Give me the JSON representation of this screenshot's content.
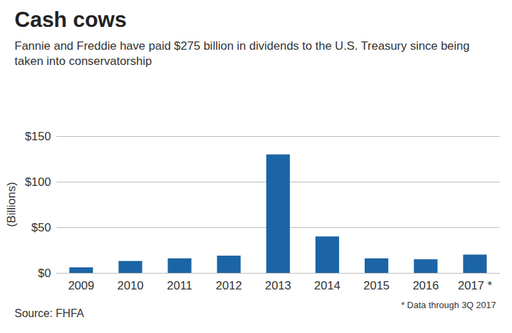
{
  "chart_data": {
    "type": "bar",
    "title": "Cash cows",
    "subtitle": "Fannie and Freddie have paid $275 billion in dividends to the U.S. Treasury since being taken into conservatorship",
    "ylabel": "(Billions)",
    "categories": [
      "2009",
      "2010",
      "2011",
      "2012",
      "2013",
      "2014",
      "2015",
      "2016",
      "2017 *"
    ],
    "values": [
      6,
      13,
      16,
      19,
      130,
      40,
      16,
      15,
      20
    ],
    "color": "#1b65a6",
    "ylim": [
      0,
      150
    ],
    "yticks": [
      {
        "value": 0,
        "label": "$0"
      },
      {
        "value": 50,
        "label": "$50"
      },
      {
        "value": 100,
        "label": "$100"
      },
      {
        "value": 150,
        "label": "$150"
      }
    ],
    "grid": true,
    "annotations": [
      "Source: FHFA",
      "* Data through 3Q 2017"
    ]
  }
}
